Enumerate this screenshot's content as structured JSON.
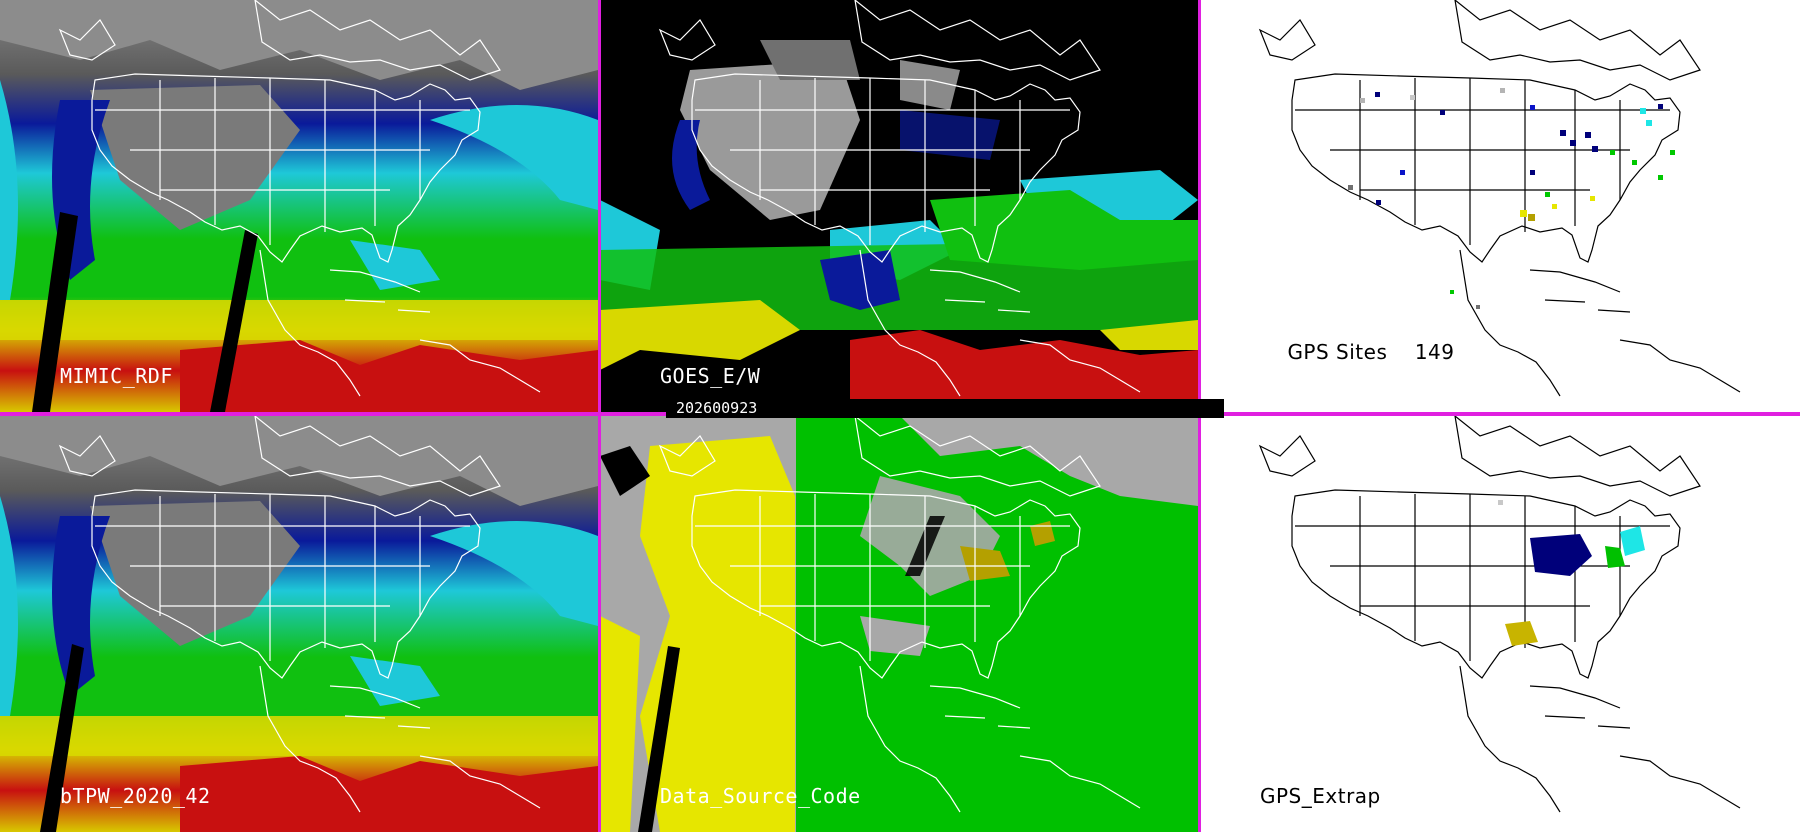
{
  "panels": {
    "top_left": {
      "label": "MIMIC_RDF"
    },
    "top_middle": {
      "label": "GOES_E/W"
    },
    "top_right": {
      "label": "GPS Sites",
      "count": "149"
    },
    "bottom_left": {
      "label": "bTPW_2020_42"
    },
    "bottom_middle": {
      "label": "Data_Source_Code"
    },
    "bottom_right": {
      "label": "GPS_Extrap"
    }
  },
  "timestamp": "202600923",
  "colors": {
    "divider": "#e020e0",
    "palette": [
      "#c8c8c8",
      "#00007a",
      "#0a14c8",
      "#1ee6e6",
      "#00c800",
      "#b4a000",
      "#e6e600",
      "#c80000",
      "#a0a0a0"
    ]
  }
}
